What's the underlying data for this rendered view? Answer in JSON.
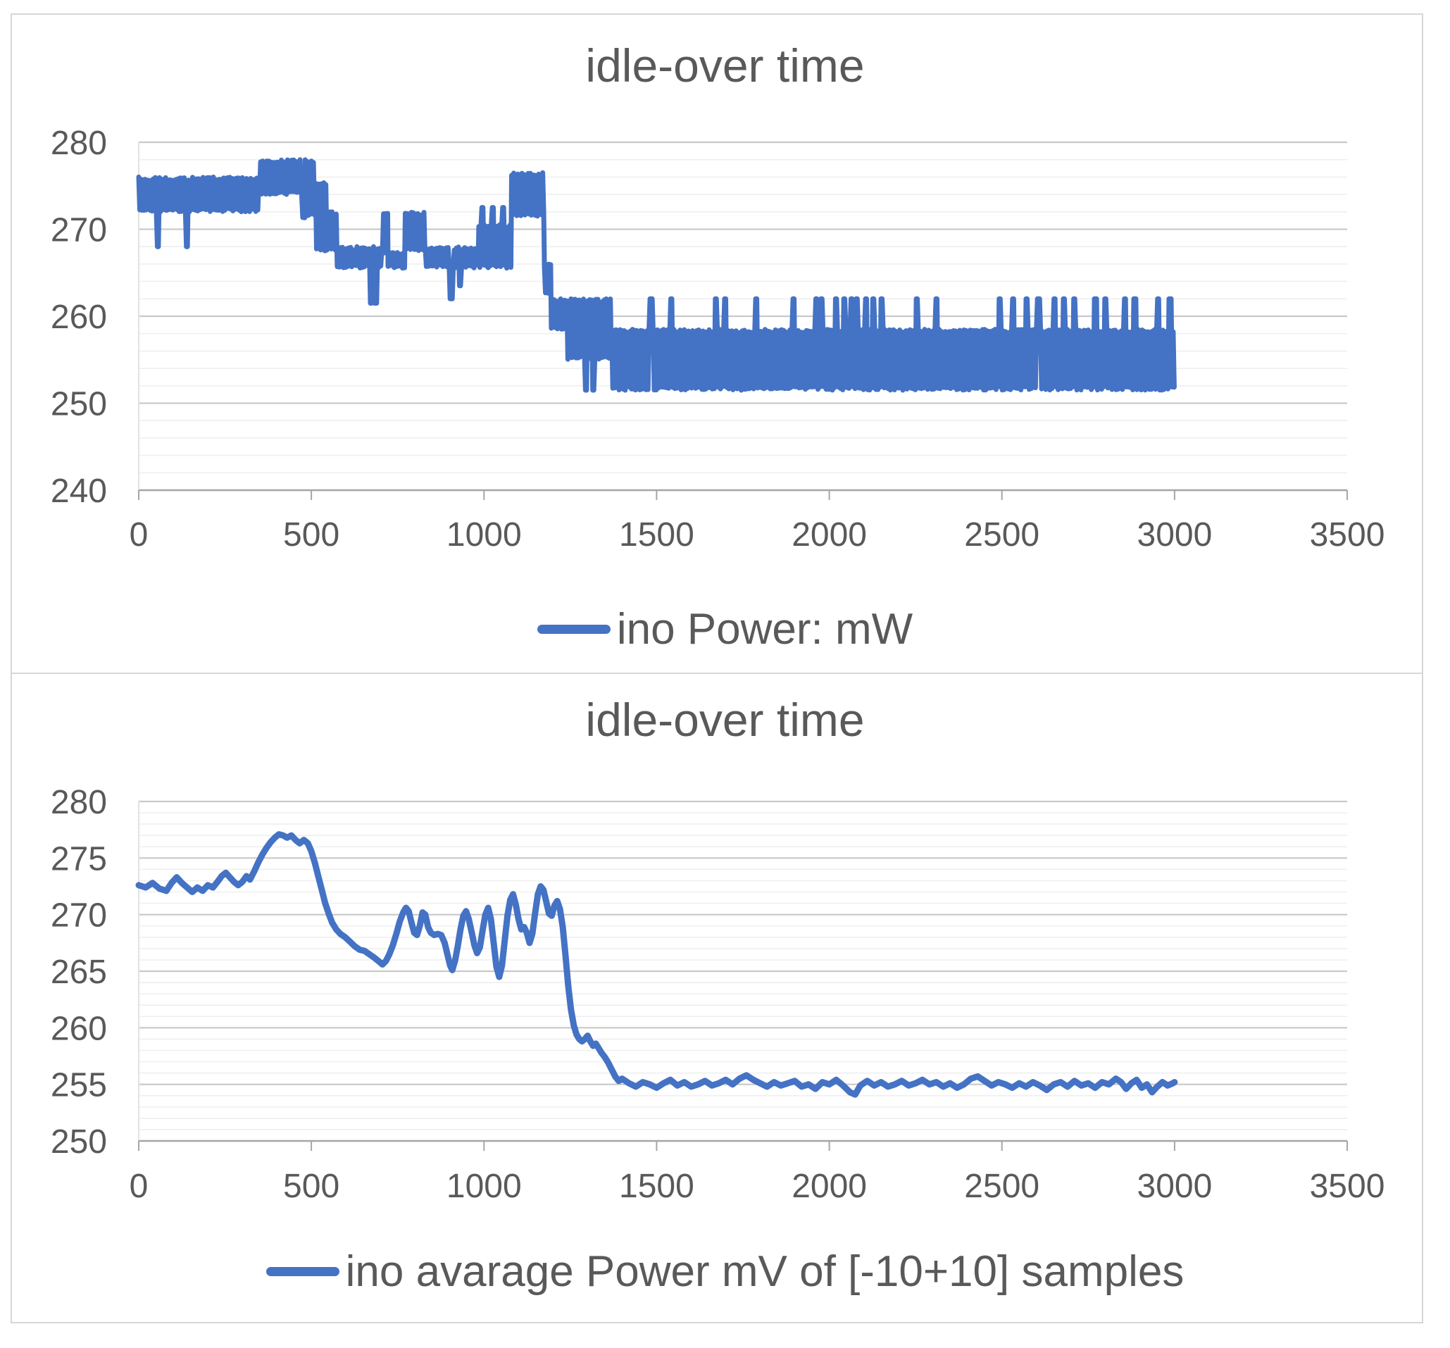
{
  "page": {
    "background": "#ffffff"
  },
  "style": {
    "series_color": "#4472C4",
    "text_color": "#595959",
    "title_color": "#595959",
    "gridline_major": "#c9c9c9",
    "gridline_minor": "#efefef",
    "axis_line": "#a6a6a6",
    "plot_left_edge": "#e2e2e2",
    "frame": "#d7d7d7"
  },
  "chart_data": [
    {
      "type": "line",
      "title": "idle-over time",
      "legend": [
        {
          "label": "ino Power: mW",
          "color": "#4472C4"
        }
      ],
      "legend_position": "bottom",
      "xlabel": "",
      "ylabel": "",
      "xlim": [
        0,
        3500
      ],
      "ylim": [
        240,
        280
      ],
      "x_ticks": [
        0,
        500,
        1000,
        1500,
        2000,
        2500,
        3000,
        3500
      ],
      "y_ticks": [
        240,
        250,
        260,
        270,
        280
      ],
      "y_minor_step": 2,
      "grid": {
        "major": true,
        "minor": true
      },
      "x_data_end": 3000,
      "line_width": 7,
      "series_encoding": "oscillating_band",
      "band_segments": [
        [
          0,
          350,
          272,
          276
        ],
        [
          350,
          472,
          274,
          278
        ],
        [
          472,
          482,
          271,
          274
        ],
        [
          482,
          512,
          271.5,
          278
        ],
        [
          512,
          545,
          267.5,
          275.5
        ],
        [
          545,
          575,
          267.5,
          272
        ],
        [
          575,
          706,
          265.5,
          268
        ],
        [
          706,
          722,
          267,
          272
        ],
        [
          722,
          772,
          265.5,
          267.5
        ],
        [
          772,
          830,
          267.5,
          272
        ],
        [
          830,
          985,
          265.5,
          268
        ],
        [
          985,
          1080,
          265.5,
          270.5
        ],
        [
          1080,
          1175,
          271.5,
          276.5
        ],
        [
          1175,
          1195,
          262.5,
          266
        ],
        [
          1195,
          1240,
          258.5,
          262
        ],
        [
          1240,
          1370,
          255,
          262
        ],
        [
          1370,
          3000,
          251.5,
          258.5
        ]
      ],
      "dips": [
        [
          55,
          268
        ],
        [
          140,
          268
        ],
        [
          672,
          261.5
        ],
        [
          686,
          261.5
        ],
        [
          905,
          262
        ],
        [
          930,
          263.5
        ],
        [
          1296,
          251.5
        ],
        [
          1316,
          251.5
        ]
      ],
      "spikes": [
        [
          995,
          272.5
        ],
        [
          1025,
          272.5
        ],
        [
          1055,
          272.5
        ],
        [
          1484,
          262
        ],
        [
          1543,
          262
        ],
        [
          1672,
          262
        ],
        [
          1698,
          262
        ],
        [
          1788,
          262
        ],
        [
          1896,
          262
        ],
        [
          1962,
          262
        ],
        [
          1978,
          262
        ],
        [
          2019,
          262
        ],
        [
          2043,
          262
        ],
        [
          2064,
          262
        ],
        [
          2080,
          262
        ],
        [
          2107,
          262
        ],
        [
          2128,
          262
        ],
        [
          2152,
          262
        ],
        [
          2254,
          262
        ],
        [
          2311,
          262
        ],
        [
          2493,
          262
        ],
        [
          2533,
          262
        ],
        [
          2572,
          262
        ],
        [
          2606,
          262
        ],
        [
          2652,
          262
        ],
        [
          2680,
          262
        ],
        [
          2709,
          262
        ],
        [
          2771,
          262
        ],
        [
          2800,
          262
        ],
        [
          2857,
          262
        ],
        [
          2885,
          262
        ],
        [
          2953,
          262
        ],
        [
          2987,
          262
        ]
      ]
    },
    {
      "type": "line",
      "title": "idle-over time",
      "legend": [
        {
          "label": "ino avarage Power mV of [-10+10] samples",
          "color": "#4472C4"
        }
      ],
      "legend_position": "bottom",
      "xlabel": "",
      "ylabel": "",
      "xlim": [
        0,
        3500
      ],
      "ylim": [
        250,
        280
      ],
      "x_ticks": [
        0,
        500,
        1000,
        1500,
        2000,
        2500,
        3000,
        3500
      ],
      "y_ticks": [
        250,
        255,
        260,
        265,
        270,
        275,
        280
      ],
      "y_minor_step": 1,
      "grid": {
        "major": true,
        "minor": true
      },
      "x_data_end": 3000,
      "line_width": 9,
      "points": [
        [
          0,
          272.6
        ],
        [
          20,
          272.4
        ],
        [
          40,
          272.8
        ],
        [
          60,
          272.3
        ],
        [
          80,
          272.1
        ],
        [
          95,
          272.8
        ],
        [
          110,
          273.3
        ],
        [
          125,
          272.8
        ],
        [
          140,
          272.4
        ],
        [
          155,
          272.0
        ],
        [
          170,
          272.4
        ],
        [
          185,
          272.1
        ],
        [
          200,
          272.6
        ],
        [
          215,
          272.4
        ],
        [
          228,
          272.9
        ],
        [
          240,
          273.4
        ],
        [
          252,
          273.7
        ],
        [
          264,
          273.3
        ],
        [
          276,
          272.9
        ],
        [
          288,
          272.6
        ],
        [
          300,
          272.9
        ],
        [
          312,
          273.4
        ],
        [
          322,
          273.1
        ],
        [
          334,
          273.8
        ],
        [
          346,
          274.6
        ],
        [
          358,
          275.3
        ],
        [
          370,
          275.9
        ],
        [
          382,
          276.4
        ],
        [
          394,
          276.8
        ],
        [
          406,
          277.1
        ],
        [
          418,
          277.0
        ],
        [
          430,
          276.8
        ],
        [
          442,
          277.0
        ],
        [
          454,
          276.6
        ],
        [
          466,
          276.3
        ],
        [
          478,
          276.6
        ],
        [
          490,
          276.3
        ],
        [
          500,
          275.6
        ],
        [
          510,
          274.6
        ],
        [
          520,
          273.4
        ],
        [
          530,
          272.2
        ],
        [
          540,
          271.0
        ],
        [
          550,
          270.1
        ],
        [
          560,
          269.3
        ],
        [
          572,
          268.7
        ],
        [
          584,
          268.3
        ],
        [
          598,
          268.0
        ],
        [
          612,
          267.6
        ],
        [
          626,
          267.2
        ],
        [
          640,
          266.9
        ],
        [
          654,
          266.8
        ],
        [
          668,
          266.5
        ],
        [
          682,
          266.2
        ],
        [
          694,
          265.9
        ],
        [
          706,
          265.6
        ],
        [
          716,
          265.9
        ],
        [
          726,
          266.5
        ],
        [
          736,
          267.3
        ],
        [
          746,
          268.3
        ],
        [
          756,
          269.4
        ],
        [
          766,
          270.2
        ],
        [
          774,
          270.6
        ],
        [
          782,
          270.3
        ],
        [
          790,
          269.3
        ],
        [
          798,
          268.4
        ],
        [
          806,
          268.2
        ],
        [
          814,
          269.0
        ],
        [
          822,
          270.2
        ],
        [
          830,
          270.0
        ],
        [
          838,
          268.9
        ],
        [
          846,
          268.4
        ],
        [
          856,
          268.2
        ],
        [
          866,
          268.3
        ],
        [
          876,
          268.2
        ],
        [
          886,
          267.5
        ],
        [
          894,
          266.5
        ],
        [
          902,
          265.5
        ],
        [
          908,
          265.1
        ],
        [
          916,
          265.9
        ],
        [
          924,
          267.2
        ],
        [
          932,
          268.7
        ],
        [
          940,
          269.9
        ],
        [
          948,
          270.3
        ],
        [
          956,
          269.6
        ],
        [
          964,
          268.5
        ],
        [
          972,
          267.3
        ],
        [
          980,
          266.6
        ],
        [
          988,
          267.1
        ],
        [
          996,
          268.6
        ],
        [
          1004,
          270.0
        ],
        [
          1012,
          270.6
        ],
        [
          1020,
          269.6
        ],
        [
          1028,
          267.5
        ],
        [
          1036,
          265.4
        ],
        [
          1044,
          264.5
        ],
        [
          1052,
          265.5
        ],
        [
          1060,
          267.7
        ],
        [
          1068,
          269.9
        ],
        [
          1076,
          271.3
        ],
        [
          1084,
          271.8
        ],
        [
          1092,
          270.9
        ],
        [
          1100,
          269.6
        ],
        [
          1108,
          268.7
        ],
        [
          1116,
          268.9
        ],
        [
          1124,
          268.4
        ],
        [
          1132,
          267.5
        ],
        [
          1140,
          268.3
        ],
        [
          1148,
          270.1
        ],
        [
          1156,
          271.8
        ],
        [
          1164,
          272.5
        ],
        [
          1172,
          272.2
        ],
        [
          1180,
          271.2
        ],
        [
          1188,
          270.1
        ],
        [
          1196,
          269.9
        ],
        [
          1204,
          270.8
        ],
        [
          1212,
          271.2
        ],
        [
          1220,
          270.5
        ],
        [
          1228,
          268.9
        ],
        [
          1236,
          266.4
        ],
        [
          1244,
          263.7
        ],
        [
          1252,
          261.6
        ],
        [
          1260,
          260.2
        ],
        [
          1268,
          259.4
        ],
        [
          1276,
          259.0
        ],
        [
          1284,
          258.8
        ],
        [
          1292,
          259.0
        ],
        [
          1300,
          259.3
        ],
        [
          1308,
          258.8
        ],
        [
          1316,
          258.4
        ],
        [
          1324,
          258.6
        ],
        [
          1332,
          258.2
        ],
        [
          1340,
          257.8
        ],
        [
          1350,
          257.4
        ],
        [
          1360,
          256.9
        ],
        [
          1370,
          256.3
        ],
        [
          1380,
          255.7
        ],
        [
          1390,
          255.3
        ],
        [
          1400,
          255.5
        ],
        [
          1420,
          255.1
        ],
        [
          1440,
          254.8
        ],
        [
          1460,
          255.2
        ],
        [
          1480,
          255.0
        ],
        [
          1500,
          254.7
        ],
        [
          1520,
          255.1
        ],
        [
          1540,
          255.4
        ],
        [
          1560,
          254.9
        ],
        [
          1580,
          255.2
        ],
        [
          1600,
          254.8
        ],
        [
          1620,
          255.0
        ],
        [
          1640,
          255.3
        ],
        [
          1660,
          254.9
        ],
        [
          1680,
          255.1
        ],
        [
          1700,
          255.4
        ],
        [
          1720,
          255.0
        ],
        [
          1740,
          255.5
        ],
        [
          1760,
          255.8
        ],
        [
          1780,
          255.4
        ],
        [
          1800,
          255.1
        ],
        [
          1820,
          254.8
        ],
        [
          1840,
          255.2
        ],
        [
          1860,
          254.9
        ],
        [
          1880,
          255.1
        ],
        [
          1900,
          255.3
        ],
        [
          1920,
          254.8
        ],
        [
          1940,
          255.0
        ],
        [
          1960,
          254.6
        ],
        [
          1980,
          255.2
        ],
        [
          2000,
          255.0
        ],
        [
          2020,
          255.4
        ],
        [
          2040,
          254.9
        ],
        [
          2060,
          254.3
        ],
        [
          2075,
          254.1
        ],
        [
          2090,
          254.9
        ],
        [
          2110,
          255.3
        ],
        [
          2130,
          254.9
        ],
        [
          2150,
          255.2
        ],
        [
          2170,
          254.8
        ],
        [
          2190,
          255.0
        ],
        [
          2210,
          255.3
        ],
        [
          2230,
          254.9
        ],
        [
          2250,
          255.1
        ],
        [
          2270,
          255.4
        ],
        [
          2290,
          255.0
        ],
        [
          2310,
          255.2
        ],
        [
          2330,
          254.8
        ],
        [
          2350,
          255.1
        ],
        [
          2370,
          254.7
        ],
        [
          2390,
          255.0
        ],
        [
          2410,
          255.5
        ],
        [
          2430,
          255.7
        ],
        [
          2450,
          255.3
        ],
        [
          2470,
          254.9
        ],
        [
          2490,
          255.2
        ],
        [
          2510,
          255.0
        ],
        [
          2530,
          254.7
        ],
        [
          2550,
          255.1
        ],
        [
          2570,
          254.8
        ],
        [
          2590,
          255.2
        ],
        [
          2610,
          254.9
        ],
        [
          2630,
          254.5
        ],
        [
          2650,
          255.0
        ],
        [
          2670,
          255.2
        ],
        [
          2690,
          254.8
        ],
        [
          2710,
          255.3
        ],
        [
          2730,
          254.9
        ],
        [
          2750,
          255.1
        ],
        [
          2770,
          254.7
        ],
        [
          2790,
          255.2
        ],
        [
          2810,
          255.0
        ],
        [
          2830,
          255.5
        ],
        [
          2845,
          255.2
        ],
        [
          2860,
          254.6
        ],
        [
          2875,
          255.1
        ],
        [
          2890,
          255.4
        ],
        [
          2905,
          254.7
        ],
        [
          2920,
          255.0
        ],
        [
          2935,
          254.3
        ],
        [
          2950,
          254.8
        ],
        [
          2965,
          255.2
        ],
        [
          2980,
          254.9
        ],
        [
          2995,
          255.1
        ],
        [
          3000,
          255.2
        ]
      ]
    }
  ]
}
